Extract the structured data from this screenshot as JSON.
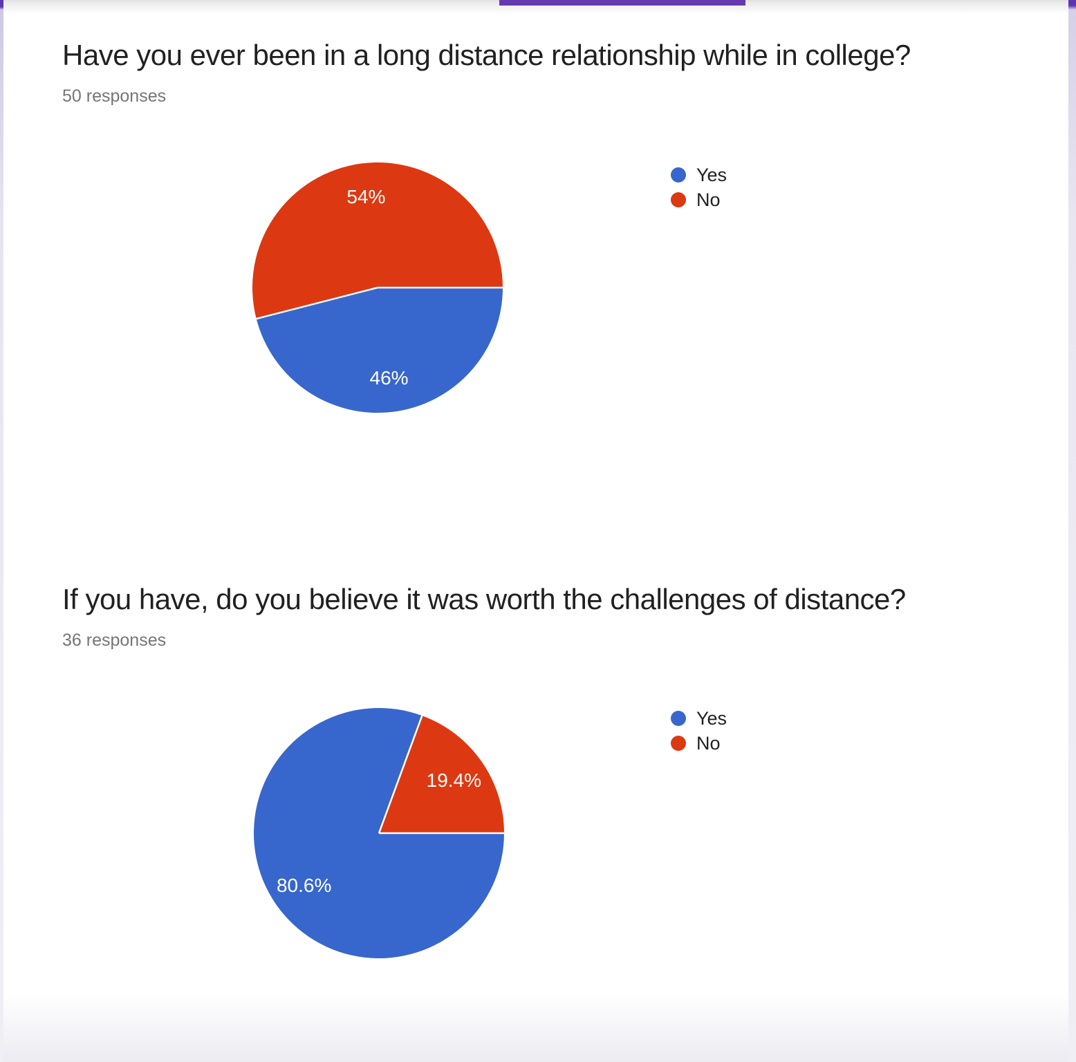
{
  "theme": {
    "header_accent_color": "#6639b0",
    "edge_strip_top_color": "#5e35b1",
    "title_text_color": "#212121",
    "secondary_text_color": "#757575",
    "slice_label_color": "#ffffff"
  },
  "chart_data": [
    {
      "type": "pie",
      "question": "Have you ever been in a long distance relationship while in college?",
      "responses": "50 responses",
      "legend_position": "right",
      "start_angle": "east-clockwise",
      "slices": [
        {
          "label": "Yes",
          "percent": 46,
          "display": "46%",
          "color": "#3767cd"
        },
        {
          "label": "No",
          "percent": 54,
          "display": "54%",
          "color": "#dc3912"
        }
      ]
    },
    {
      "type": "pie",
      "question": "If you have, do you believe it was worth the challenges of distance?",
      "responses": "36 responses",
      "legend_position": "right",
      "start_angle": "east-clockwise",
      "slices": [
        {
          "label": "Yes",
          "percent": 80.6,
          "display": "80.6%",
          "color": "#3767cd"
        },
        {
          "label": "No",
          "percent": 19.4,
          "display": "19.4%",
          "color": "#dc3912"
        }
      ]
    }
  ]
}
